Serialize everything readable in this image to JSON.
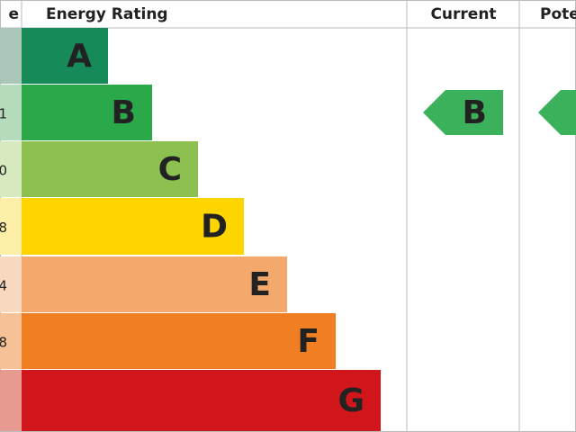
{
  "header": {
    "score": "e",
    "rating": "Energy Rating",
    "current": "Current",
    "potential": "Pote"
  },
  "bands": [
    {
      "letter": "A",
      "score": null
    },
    {
      "letter": "B",
      "score": "1"
    },
    {
      "letter": "C",
      "score": "0"
    },
    {
      "letter": "D",
      "score": "8"
    },
    {
      "letter": "E",
      "score": "4"
    },
    {
      "letter": "F",
      "score": "8"
    },
    {
      "letter": "G",
      "score": null
    }
  ],
  "current": "B"
}
